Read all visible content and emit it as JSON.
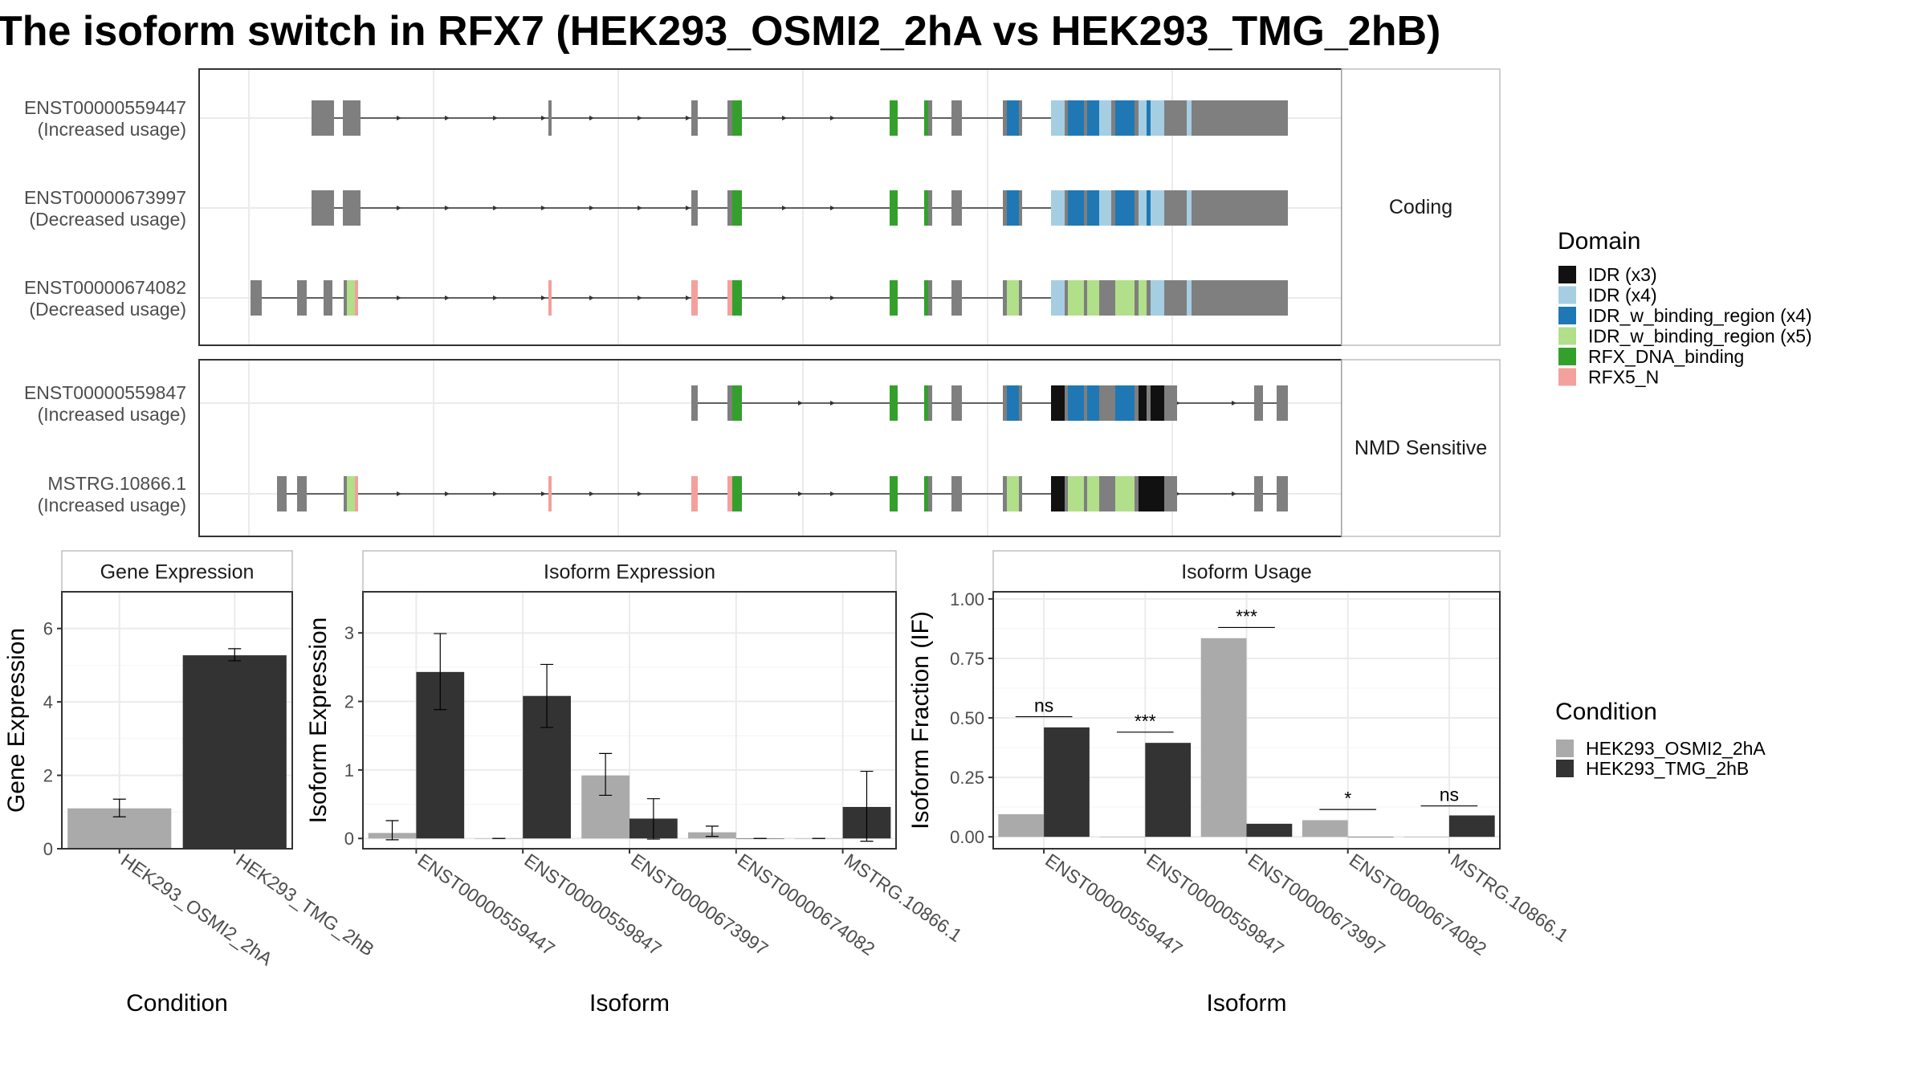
{
  "title": "The isoform switch in RFX7 (HEK293_OSMI2_2hA vs HEK293_TMG_2hB)",
  "colors": {
    "exon": "#7f7f7f",
    "intron": "#333333",
    "grid": "#ebebeb",
    "panel_border": "#333333",
    "strip_border": "#bfbfbf",
    "condition_a": "#aaaaaa",
    "condition_b": "#333333"
  },
  "domain_legend": {
    "title": "Domain",
    "items": [
      {
        "label": "IDR (x3)",
        "color": "#111111"
      },
      {
        "label": "IDR (x4)",
        "color": "#a6cee3"
      },
      {
        "label": "IDR_w_binding_region (x4)",
        "color": "#1f78b4"
      },
      {
        "label": "IDR_w_binding_region (x5)",
        "color": "#b2df8a"
      },
      {
        "label": "RFX_DNA_binding",
        "color": "#33a02c"
      },
      {
        "label": "RFX5_N",
        "color": "#f4a09c"
      }
    ]
  },
  "condition_legend": {
    "title": "Condition",
    "items": [
      {
        "label": "HEK293_OSMI2_2hA",
        "color": "#aaaaaa"
      },
      {
        "label": "HEK293_TMG_2hB",
        "color": "#333333"
      }
    ]
  },
  "structure": {
    "groups": [
      {
        "label": "Coding",
        "tracks": [
          {
            "id": "ENST00000559447",
            "usage": "(Increased usage)",
            "variant": "coding_a"
          },
          {
            "id": "ENST00000673997",
            "usage": "(Decreased usage)",
            "variant": "coding_b"
          },
          {
            "id": "ENST00000674082",
            "usage": "(Decreased usage)",
            "variant": "coding_c"
          }
        ]
      },
      {
        "label": "NMD Sensitive",
        "tracks": [
          {
            "id": "ENST00000559847",
            "usage": "(Increased usage)",
            "variant": "nmd_a"
          },
          {
            "id": "MSTRG.10866.1",
            "usage": "(Increased usage)",
            "variant": "nmd_b"
          }
        ]
      }
    ]
  },
  "chart_data": [
    {
      "type": "bar",
      "title": "Gene Expression",
      "xlabel": "Condition",
      "ylabel": "Gene Expression",
      "ylim": [
        0,
        7
      ],
      "yticks": [
        0,
        2,
        4,
        6
      ],
      "ytick_labels": [
        "0",
        "2",
        "4",
        "6"
      ],
      "categories": [
        "HEK293_OSMI2_2hA",
        "HEK293_TMG_2hB"
      ],
      "values": [
        1.1,
        5.27
      ],
      "error_low": [
        0.87,
        5.12
      ],
      "error_high": [
        1.35,
        5.45
      ]
    },
    {
      "type": "bar",
      "title": "Isoform Expression",
      "xlabel": "Isoform",
      "ylabel": "Isoform Expression",
      "ylim": [
        -0.15,
        3.6
      ],
      "yticks": [
        0,
        1,
        2,
        3
      ],
      "ytick_labels": [
        "0",
        "1",
        "2",
        "3"
      ],
      "categories": [
        "ENST00000559447",
        "ENST00000559847",
        "ENST00000673997",
        "ENST00000674082",
        "MSTRG.10866.1"
      ],
      "series": [
        {
          "name": "HEK293_OSMI2_2hA",
          "values": [
            0.08,
            0.0,
            0.92,
            0.09,
            0.0
          ],
          "error_low": [
            -0.02,
            0.0,
            0.63,
            0.03,
            0.0
          ],
          "error_high": [
            0.26,
            0.0,
            1.24,
            0.18,
            0.0
          ]
        },
        {
          "name": "HEK293_TMG_2hB",
          "values": [
            2.43,
            2.08,
            0.29,
            0.0,
            0.46
          ],
          "error_low": [
            1.88,
            1.62,
            -0.01,
            0.0,
            -0.04
          ],
          "error_high": [
            2.99,
            2.54,
            0.58,
            0.0,
            0.98
          ]
        }
      ]
    },
    {
      "type": "bar",
      "title": "Isoform Usage",
      "xlabel": "Isoform",
      "ylabel": "Isoform Fraction (IF)",
      "ylim": [
        -0.05,
        1.03
      ],
      "yticks": [
        0,
        0.25,
        0.5,
        0.75,
        1.0
      ],
      "ytick_labels": [
        "0.00",
        "0.25",
        "0.50",
        "0.75",
        "1.00"
      ],
      "categories": [
        "ENST00000559447",
        "ENST00000559847",
        "ENST00000673997",
        "ENST00000674082",
        "MSTRG.10866.1"
      ],
      "series": [
        {
          "name": "HEK293_OSMI2_2hA",
          "values": [
            0.095,
            0.0,
            0.835,
            0.07,
            0.0
          ]
        },
        {
          "name": "HEK293_TMG_2hB",
          "values": [
            0.46,
            0.395,
            0.055,
            0.0,
            0.09
          ]
        }
      ],
      "significance": [
        {
          "label": "ns",
          "y": 0.505
        },
        {
          "label": "***",
          "y": 0.44
        },
        {
          "label": "***",
          "y": 0.88
        },
        {
          "label": "*",
          "y": 0.115
        },
        {
          "label": "ns",
          "y": 0.13
        }
      ]
    }
  ]
}
